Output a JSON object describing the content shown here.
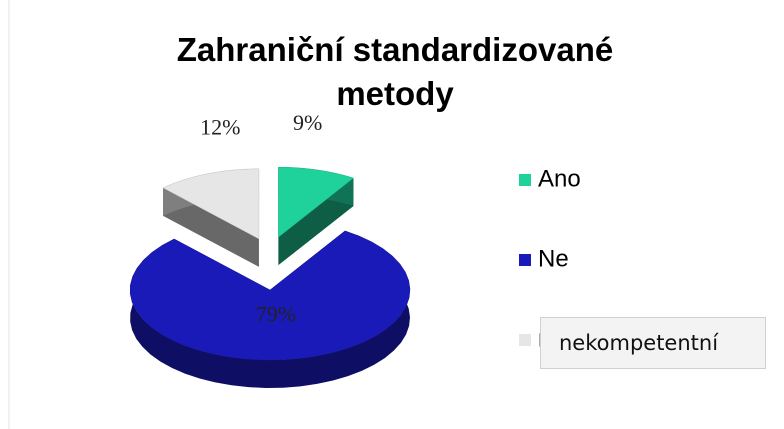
{
  "chart_data": {
    "type": "pie",
    "title": "Zahraniční standardizované metody",
    "categories": [
      "Ano",
      "Ne",
      "nekompetentní"
    ],
    "values": [
      9,
      79,
      12
    ],
    "value_labels": [
      "9%",
      "79%",
      "12%"
    ],
    "colors": [
      "#1fd19a",
      "#1a1ab8",
      "#e6e6e6"
    ],
    "exploded": [
      true,
      false,
      true
    ],
    "legend": "right"
  }
}
